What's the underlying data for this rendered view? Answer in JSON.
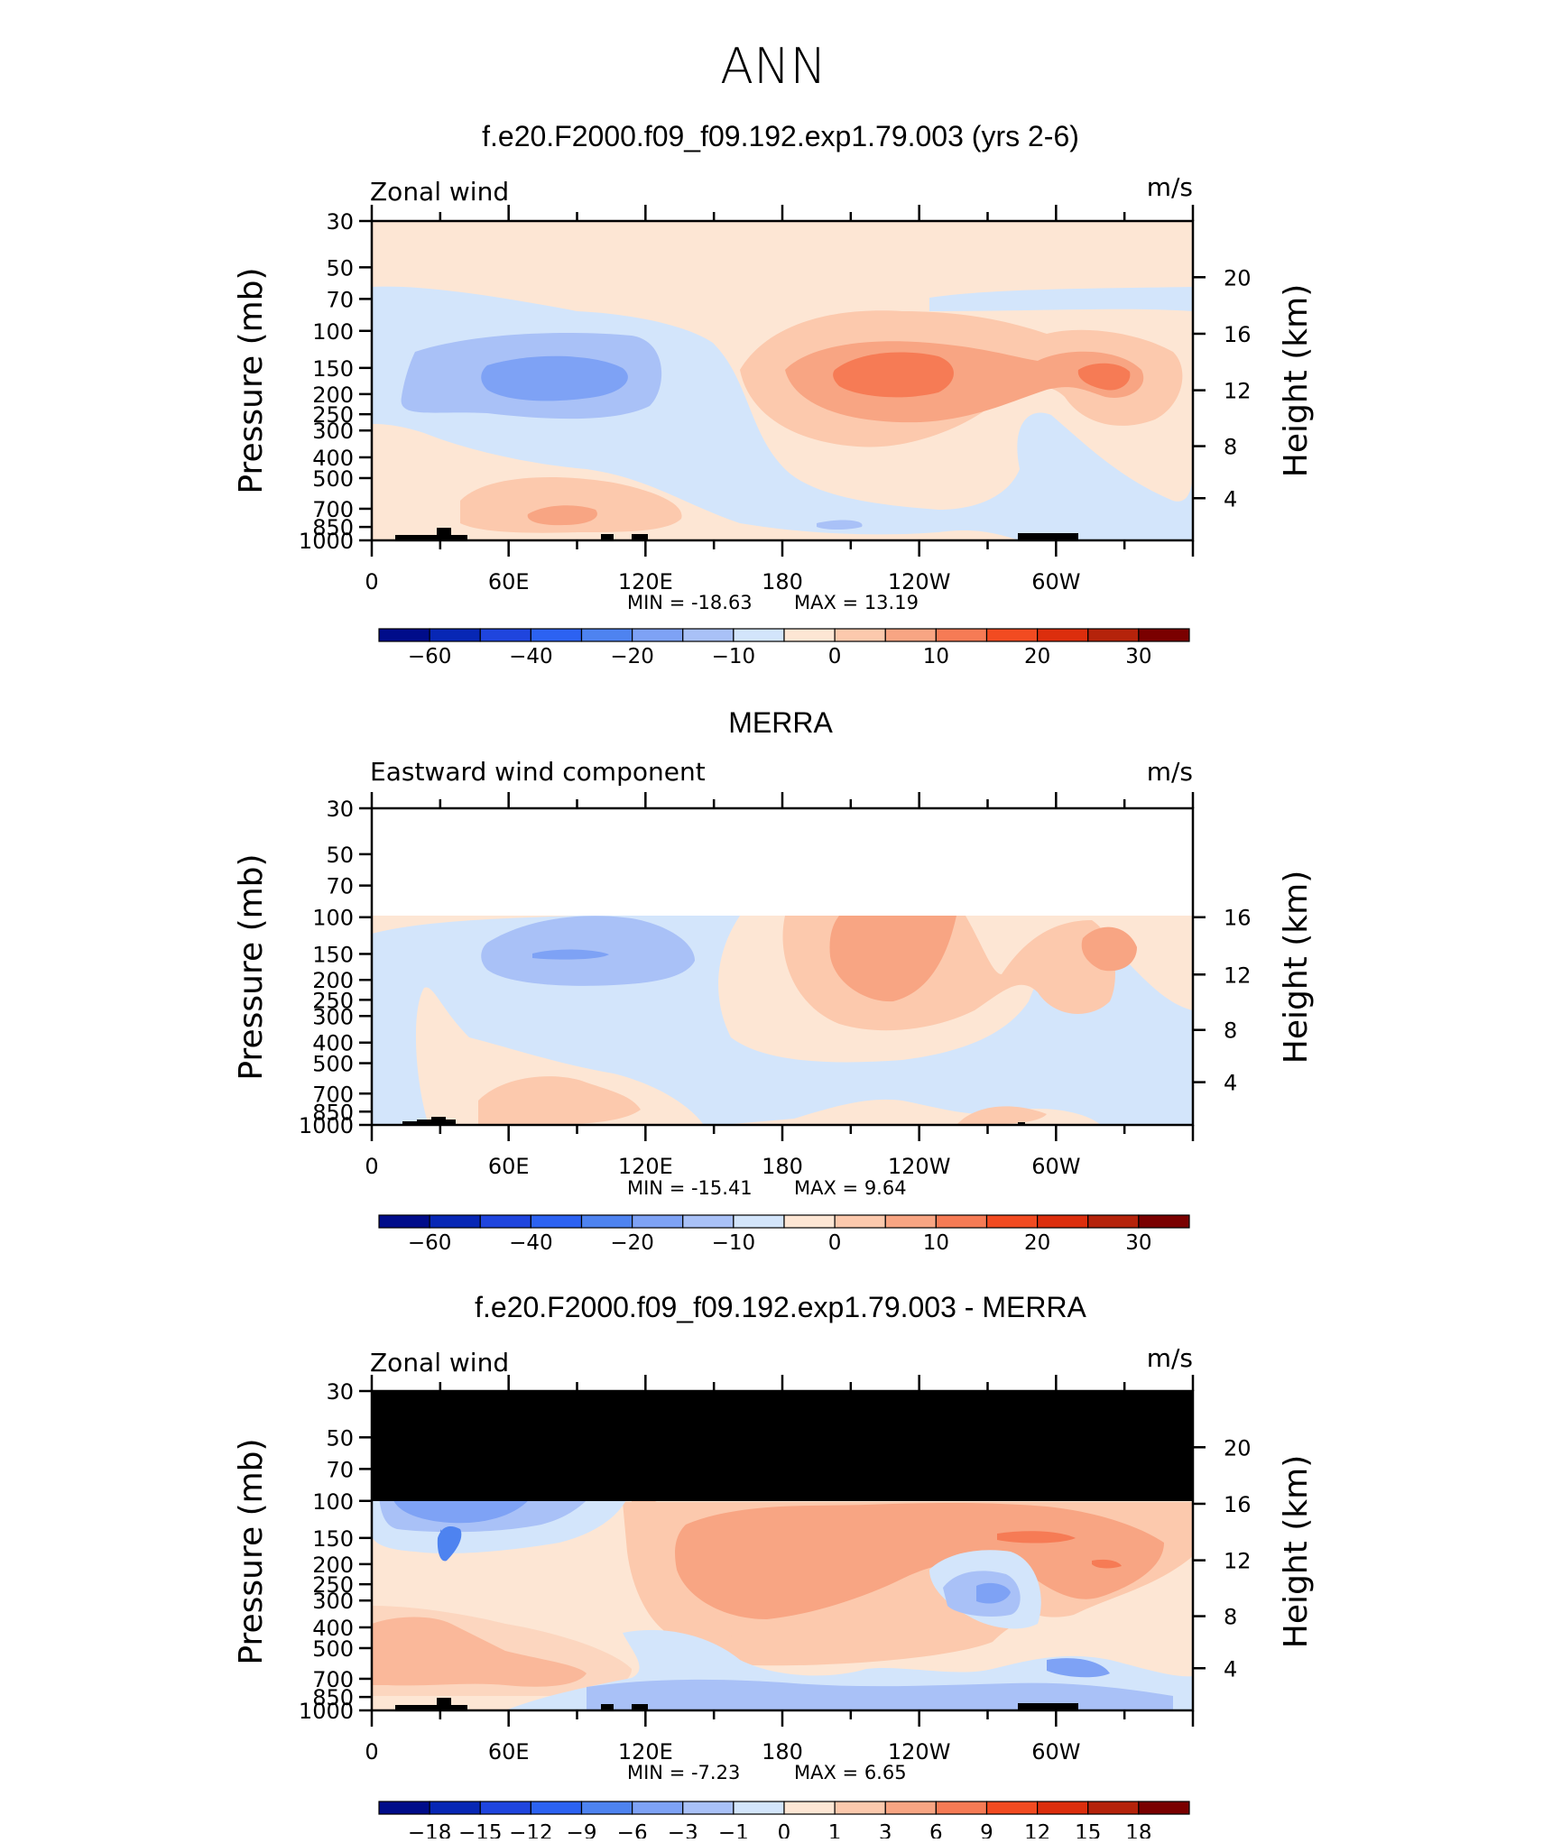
{
  "page": {
    "season": "ANN"
  },
  "chart_data": [
    {
      "type": "heatmap",
      "title": "f.e20.F2000.f09_f09.192.exp1.79.003 (yrs 2-6)",
      "left_label": "Zonal wind",
      "units": "m/s",
      "ylabel": "Pressure (mb)",
      "ylabel_right": "Height (km)",
      "y_ticks": [
        "30",
        "50",
        "70",
        "100",
        "150",
        "200",
        "250",
        "300",
        "400",
        "500",
        "700",
        "850",
        "1000"
      ],
      "y_right_ticks": [
        "20",
        "16",
        "12",
        "8",
        "4"
      ],
      "x_ticks": [
        "0",
        "60E",
        "120E",
        "180",
        "120W",
        "60W"
      ],
      "min_label": "MIN = -18.63",
      "max_label": "MAX = 13.19",
      "min": -18.63,
      "max": 13.19,
      "colorbar_labels": [
        "-60",
        "-40",
        "-20",
        "-10",
        "0",
        "10",
        "20",
        "30"
      ]
    },
    {
      "type": "heatmap",
      "title": "MERRA",
      "left_label": "Eastward wind component",
      "units": "m/s",
      "ylabel": "Pressure (mb)",
      "ylabel_right": "Height (km)",
      "y_ticks": [
        "30",
        "50",
        "70",
        "100",
        "150",
        "200",
        "250",
        "300",
        "400",
        "500",
        "700",
        "850",
        "1000"
      ],
      "y_right_ticks": [
        "16",
        "12",
        "8",
        "4"
      ],
      "x_ticks": [
        "0",
        "60E",
        "120E",
        "180",
        "120W",
        "60W"
      ],
      "min_label": "MIN = -15.41",
      "max_label": "MAX = 9.64",
      "min": -15.41,
      "max": 9.64,
      "colorbar_labels": [
        "-60",
        "-40",
        "-20",
        "-10",
        "0",
        "10",
        "20",
        "30"
      ]
    },
    {
      "type": "heatmap",
      "title": "f.e20.F2000.f09_f09.192.exp1.79.003 - MERRA",
      "left_label": "Zonal wind",
      "units": "m/s",
      "ylabel": "Pressure (mb)",
      "ylabel_right": "Height (km)",
      "y_ticks": [
        "30",
        "50",
        "70",
        "100",
        "150",
        "200",
        "250",
        "300",
        "400",
        "500",
        "700",
        "850",
        "1000"
      ],
      "y_right_ticks": [
        "20",
        "16",
        "12",
        "8",
        "4"
      ],
      "x_ticks": [
        "0",
        "60E",
        "120E",
        "180",
        "120W",
        "60W"
      ],
      "min_label": "MIN = -7.23",
      "max_label": "MAX = 6.65",
      "min": -7.23,
      "max": 6.65,
      "colorbar_labels": [
        "-18",
        "-15",
        "-12",
        "-9",
        "-6",
        "-3",
        "-1",
        "0",
        "1",
        "3",
        "6",
        "9",
        "12",
        "15",
        "18"
      ]
    }
  ],
  "colors": {
    "scale": [
      "#000c8a",
      "#0727b5",
      "#1f45de",
      "#2c62f2",
      "#4e83f0",
      "#7ea2f5",
      "#a9c1f7",
      "#d3e5fb",
      "#fde6d4",
      "#fcc9ad",
      "#f8a583",
      "#f67b55",
      "#f24b21",
      "#dc2e0d",
      "#b5230b",
      "#7a0000"
    ],
    "diff_scale": [
      "#000c8a",
      "#0727b5",
      "#1f45de",
      "#2c62f2",
      "#4e83f0",
      "#7ea2f5",
      "#a9c1f7",
      "#d3e5fb",
      "#fde6d4",
      "#fcc9ad",
      "#f8a583",
      "#f67b55",
      "#f24b21",
      "#dc2e0d",
      "#b5230b",
      "#7a0000"
    ]
  }
}
